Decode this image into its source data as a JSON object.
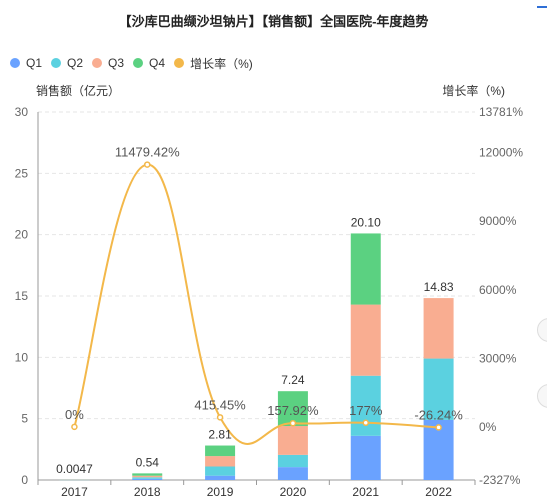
{
  "colors": {
    "Q1": "#6aa2ff",
    "Q2": "#5bd1e0",
    "Q3": "#f9ad91",
    "Q4": "#5bd181",
    "growth": "#f3b84a",
    "axis_text": "#666666",
    "grid": "#e6e6e6"
  },
  "chart_data": {
    "type": "bar",
    "stacked": true,
    "title": "【沙库巴曲缬沙坦钠片】【销售额】全国医院-年度趋势",
    "categories": [
      "2017",
      "2018",
      "2019",
      "2020",
      "2021",
      "2022"
    ],
    "legend": [
      "Q1",
      "Q2",
      "Q3",
      "Q4",
      "增长率（%)"
    ],
    "legend_position": "top-left",
    "y_left": {
      "label": "销售额（亿元）",
      "ticks": [
        "0",
        "5",
        "10",
        "15",
        "20",
        "25",
        "30"
      ],
      "range": [
        0,
        30
      ]
    },
    "y_right": {
      "label": "增长率（%)",
      "ticks": [
        "-2327%",
        "0%",
        "3000%",
        "6000%",
        "9000%",
        "12000%",
        "13781%"
      ],
      "range": [
        -2327,
        13781
      ]
    },
    "series": [
      {
        "name": "Q1",
        "values": [
          0.001,
          0.1,
          0.35,
          1.05,
          3.6,
          4.9
        ]
      },
      {
        "name": "Q2",
        "values": [
          0.001,
          0.12,
          0.75,
          1.0,
          4.9,
          5.0
        ]
      },
      {
        "name": "Q3",
        "values": [
          0.001,
          0.13,
          0.85,
          2.35,
          5.8,
          4.93
        ]
      },
      {
        "name": "Q4",
        "values": [
          0.0017,
          0.19,
          0.86,
          2.84,
          5.8,
          0
        ]
      }
    ],
    "totals": [
      0.0047,
      0.54,
      2.81,
      7.24,
      20.1,
      14.83
    ],
    "total_labels": [
      "0.0047",
      "0.54",
      "2.81",
      "7.24",
      "20.10",
      "14.83"
    ],
    "growth": {
      "name": "增长率（%)",
      "values": [
        0,
        11479.42,
        415.45,
        157.92,
        177,
        -26.24
      ],
      "labels": [
        "0%",
        "11479.42%",
        "415.45%",
        "157.92%",
        "177%",
        "-26.24%"
      ]
    },
    "grid": true
  }
}
